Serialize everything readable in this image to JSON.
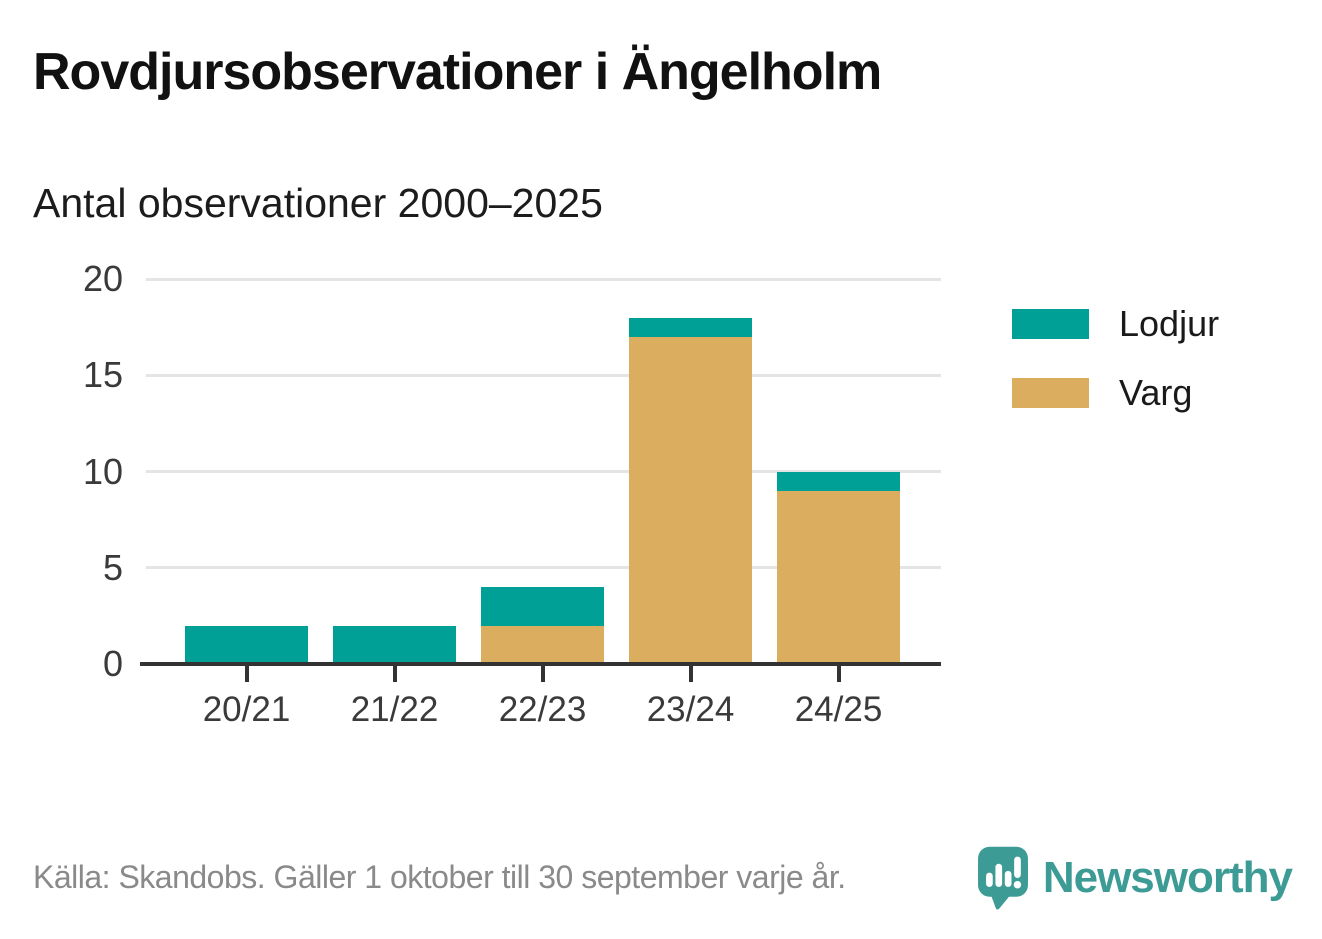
{
  "header": {
    "title": "Rovdjursobservationer i Ängelholm",
    "subtitle": "Antal observationer 2000–2025"
  },
  "chart_data": {
    "type": "bar",
    "stacked": true,
    "title": "Rovdjursobservationer i Ängelholm",
    "subtitle": "Antal observationer 2000–2025",
    "categories": [
      "20/21",
      "21/22",
      "22/23",
      "23/24",
      "24/25"
    ],
    "series": [
      {
        "name": "Lodjur",
        "color": "#00A096",
        "values": [
          2,
          2,
          2,
          1,
          1
        ]
      },
      {
        "name": "Varg",
        "color": "#DBAD5F",
        "values": [
          0,
          0,
          2,
          17,
          9
        ]
      }
    ],
    "stack_bottom_to_top": [
      "Varg",
      "Lodjur"
    ],
    "xlabel": "",
    "ylabel": "",
    "ylim": [
      0,
      20
    ],
    "yticks": [
      0,
      5,
      10,
      15,
      20
    ],
    "grid": true,
    "legend_position": "right",
    "colors": {
      "axis": "#333333",
      "gridline": "#e4e4e4",
      "tick_label": "#3a3a3a"
    }
  },
  "footer": {
    "source": "Källa: Skandobs. Gäller 1 oktober till 30 september varje år.",
    "brand": "Newsworthy",
    "brand_color": "#3D9B95",
    "logo_icon": "newsworthy-speech-bubble-bar-chart-icon"
  }
}
